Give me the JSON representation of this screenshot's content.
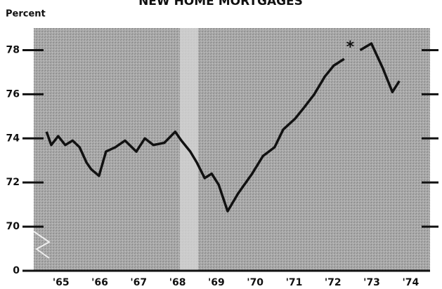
{
  "chart_data": {
    "type": "line",
    "title": "NEW HOME MORTGAGES",
    "ylabel": "Percent",
    "annotation": "*",
    "x": [
      1965.13,
      1965.25,
      1965.43,
      1965.61,
      1965.8,
      1965.98,
      1966.16,
      1966.28,
      1966.48,
      1966.66,
      1966.9,
      1967.15,
      1967.44,
      1967.66,
      1967.88,
      1968.16,
      1968.44,
      1968.6,
      1968.83,
      1969.0,
      1969.2,
      1969.38,
      1969.56,
      1969.79,
      1970.06,
      1970.42,
      1970.7,
      1971.0,
      1971.22,
      1971.53,
      1971.76,
      1972.02,
      1972.29,
      1972.52,
      1972.79,
      1973.0,
      1973.2,
      1973.49,
      1973.78,
      1974.03,
      1974.21
    ],
    "series": [
      {
        "name": null,
        "color": "#111111",
        "values": [
          74.3,
          73.7,
          74.1,
          73.7,
          73.9,
          73.6,
          72.9,
          72.6,
          72.3,
          73.4,
          73.6,
          73.9,
          73.4,
          74.0,
          73.7,
          73.8,
          74.3,
          73.9,
          73.4,
          72.9,
          72.2,
          72.4,
          71.9,
          70.7,
          71.5,
          72.4,
          73.2,
          73.6,
          74.4,
          74.9,
          75.4,
          76.0,
          76.8,
          77.3,
          77.6,
          null,
          78.0,
          78.3,
          77.2,
          76.1,
          76.6
        ]
      }
    ],
    "xlim": [
      1964.8,
      1975
    ],
    "xticks": [
      {
        "value": 1965.5,
        "label": "'65"
      },
      {
        "value": 1966.5,
        "label": "'66"
      },
      {
        "value": 1967.5,
        "label": "'67"
      },
      {
        "value": 1968.5,
        "label": "'68"
      },
      {
        "value": 1969.5,
        "label": "'69"
      },
      {
        "value": 1970.5,
        "label": "'70"
      },
      {
        "value": 1971.5,
        "label": "'71"
      },
      {
        "value": 1972.5,
        "label": "'72"
      },
      {
        "value": 1973.5,
        "label": "'73"
      },
      {
        "value": 1974.5,
        "label": "'74"
      }
    ],
    "ylim": [
      0,
      79
    ],
    "yticks": [
      0,
      70,
      72,
      74,
      76,
      78
    ],
    "axis_break": true
  }
}
